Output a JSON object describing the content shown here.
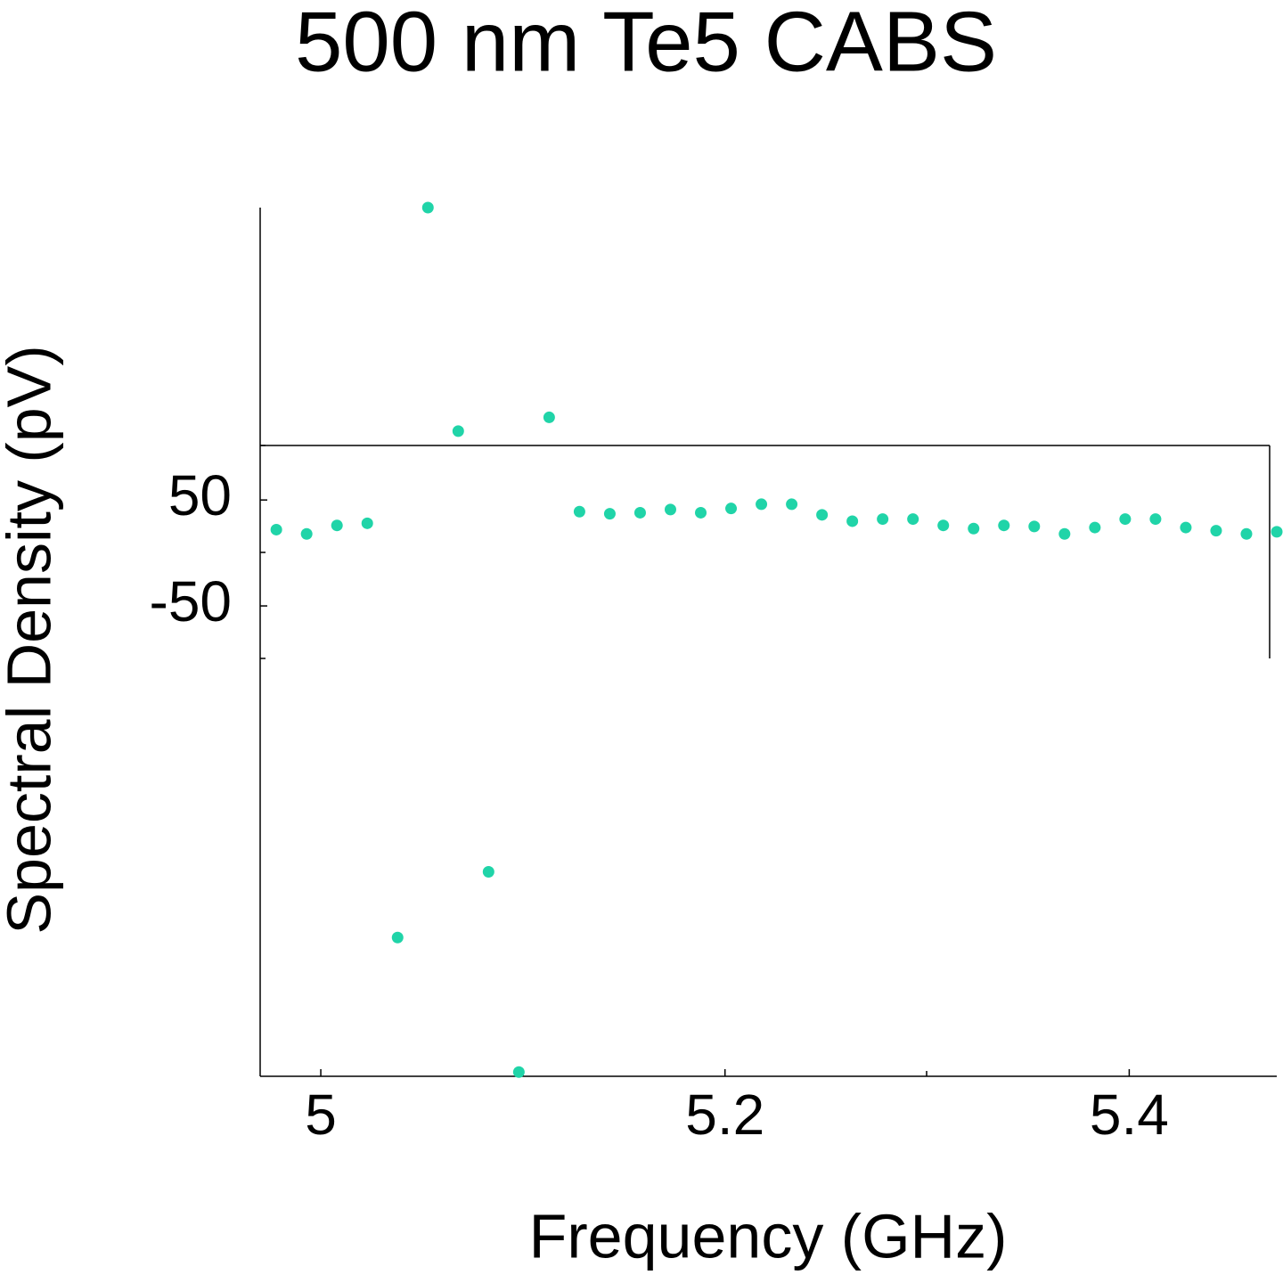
{
  "chart_data": {
    "type": "scatter",
    "title": "500 nm Te5 CABS",
    "xlabel": "Frequency (GHz)",
    "ylabel": "Spectral Density (pV)",
    "color": "#20d4a8",
    "x": [
      4.978,
      4.993,
      5.008,
      5.023,
      5.038,
      5.053,
      5.068,
      5.083,
      5.098,
      5.113,
      5.128,
      5.143,
      5.158,
      5.173,
      5.188,
      5.203,
      5.218,
      5.233,
      5.248,
      5.263,
      5.278,
      5.293,
      5.308,
      5.323,
      5.338,
      5.353,
      5.368,
      5.383,
      5.398,
      5.413,
      5.428,
      5.443,
      5.458,
      5.473
    ],
    "values": [
      22,
      18,
      26,
      28,
      -363,
      326,
      115,
      -301,
      -490,
      128,
      39,
      37,
      38,
      41,
      38,
      42,
      46,
      46,
      36,
      30,
      32,
      32,
      26,
      23,
      26,
      25,
      18,
      24,
      32,
      32,
      24,
      21,
      18,
      20
    ],
    "xlim": [
      4.97,
      5.473
    ],
    "ylim": [
      -494,
      326
    ],
    "xticks": [
      5,
      5.2,
      5.4
    ],
    "yticks": [
      50,
      -50
    ]
  }
}
